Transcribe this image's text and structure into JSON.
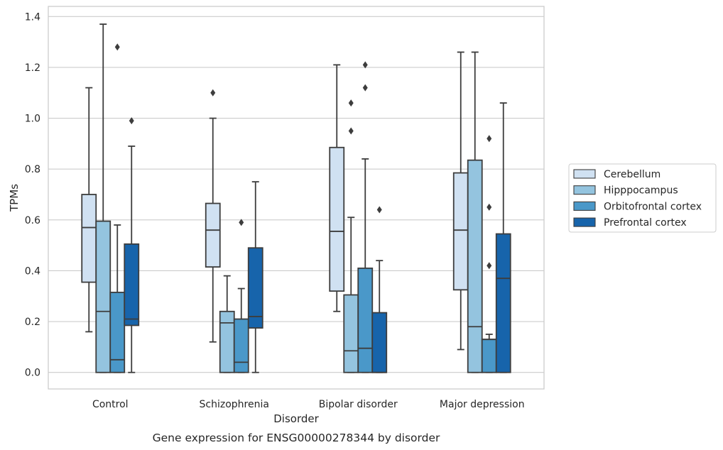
{
  "caption": "Gene expression for ENSG00000278344 by disorder",
  "chart_data": {
    "type": "box",
    "xlabel": "Disorder",
    "ylabel": "TPMs",
    "ylim": [
      -0.065,
      1.44
    ],
    "yticks": [
      0.0,
      0.2,
      0.4,
      0.6,
      0.8,
      1.0,
      1.2,
      1.4
    ],
    "ytick_labels": [
      "0.0",
      "0.2",
      "0.4",
      "0.6",
      "0.8",
      "1.0",
      "1.2",
      "1.4"
    ],
    "grid": "horizontal",
    "legend_position": "right",
    "categories": [
      "Control",
      "Schizophrenia",
      "Bipolar disorder",
      "Major depression"
    ],
    "series": [
      {
        "name": "Cerebellum",
        "color": "#d0e1f2",
        "boxes": [
          {
            "whislo": 0.16,
            "q1": 0.355,
            "med": 0.57,
            "q3": 0.7,
            "whishi": 1.12,
            "fliers": []
          },
          {
            "whislo": 0.12,
            "q1": 0.415,
            "med": 0.56,
            "q3": 0.665,
            "whishi": 1.0,
            "fliers": [
              1.1
            ]
          },
          {
            "whislo": 0.24,
            "q1": 0.32,
            "med": 0.555,
            "q3": 0.885,
            "whishi": 1.21,
            "fliers": []
          },
          {
            "whislo": 0.09,
            "q1": 0.325,
            "med": 0.56,
            "q3": 0.785,
            "whishi": 1.26,
            "fliers": []
          }
        ]
      },
      {
        "name": "Hipppocampus",
        "color": "#94c4df",
        "boxes": [
          {
            "whislo": 0.0,
            "q1": 0.0,
            "med": 0.24,
            "q3": 0.595,
            "whishi": 1.37,
            "fliers": []
          },
          {
            "whislo": 0.0,
            "q1": 0.0,
            "med": 0.195,
            "q3": 0.24,
            "whishi": 0.38,
            "fliers": []
          },
          {
            "whislo": 0.0,
            "q1": 0.0,
            "med": 0.085,
            "q3": 0.305,
            "whishi": 0.61,
            "fliers": [
              0.95,
              1.06
            ]
          },
          {
            "whislo": 0.0,
            "q1": 0.0,
            "med": 0.18,
            "q3": 0.835,
            "whishi": 1.26,
            "fliers": []
          }
        ]
      },
      {
        "name": "Orbitofrontal cortex",
        "color": "#4a98c9",
        "boxes": [
          {
            "whislo": 0.0,
            "q1": 0.0,
            "med": 0.05,
            "q3": 0.315,
            "whishi": 0.58,
            "fliers": [
              1.28
            ]
          },
          {
            "whislo": 0.0,
            "q1": 0.0,
            "med": 0.04,
            "q3": 0.21,
            "whishi": 0.33,
            "fliers": [
              0.59
            ]
          },
          {
            "whislo": 0.0,
            "q1": 0.0,
            "med": 0.095,
            "q3": 0.41,
            "whishi": 0.84,
            "fliers": [
              1.12,
              1.21
            ]
          },
          {
            "whislo": 0.0,
            "q1": 0.0,
            "med": 0.13,
            "q3": 0.13,
            "whishi": 0.15,
            "fliers": [
              0.42,
              0.65,
              0.92
            ]
          }
        ]
      },
      {
        "name": "Prefrontal cortex",
        "color": "#1764ab",
        "boxes": [
          {
            "whislo": 0.0,
            "q1": 0.185,
            "med": 0.21,
            "q3": 0.505,
            "whishi": 0.89,
            "fliers": [
              0.99
            ]
          },
          {
            "whislo": 0.0,
            "q1": 0.175,
            "med": 0.22,
            "q3": 0.49,
            "whishi": 0.75,
            "fliers": []
          },
          {
            "whislo": 0.0,
            "q1": 0.0,
            "med": 0.0,
            "q3": 0.235,
            "whishi": 0.44,
            "fliers": [
              0.64
            ]
          },
          {
            "whislo": 0.0,
            "q1": 0.0,
            "med": 0.37,
            "q3": 0.545,
            "whishi": 1.06,
            "fliers": []
          }
        ]
      }
    ]
  }
}
